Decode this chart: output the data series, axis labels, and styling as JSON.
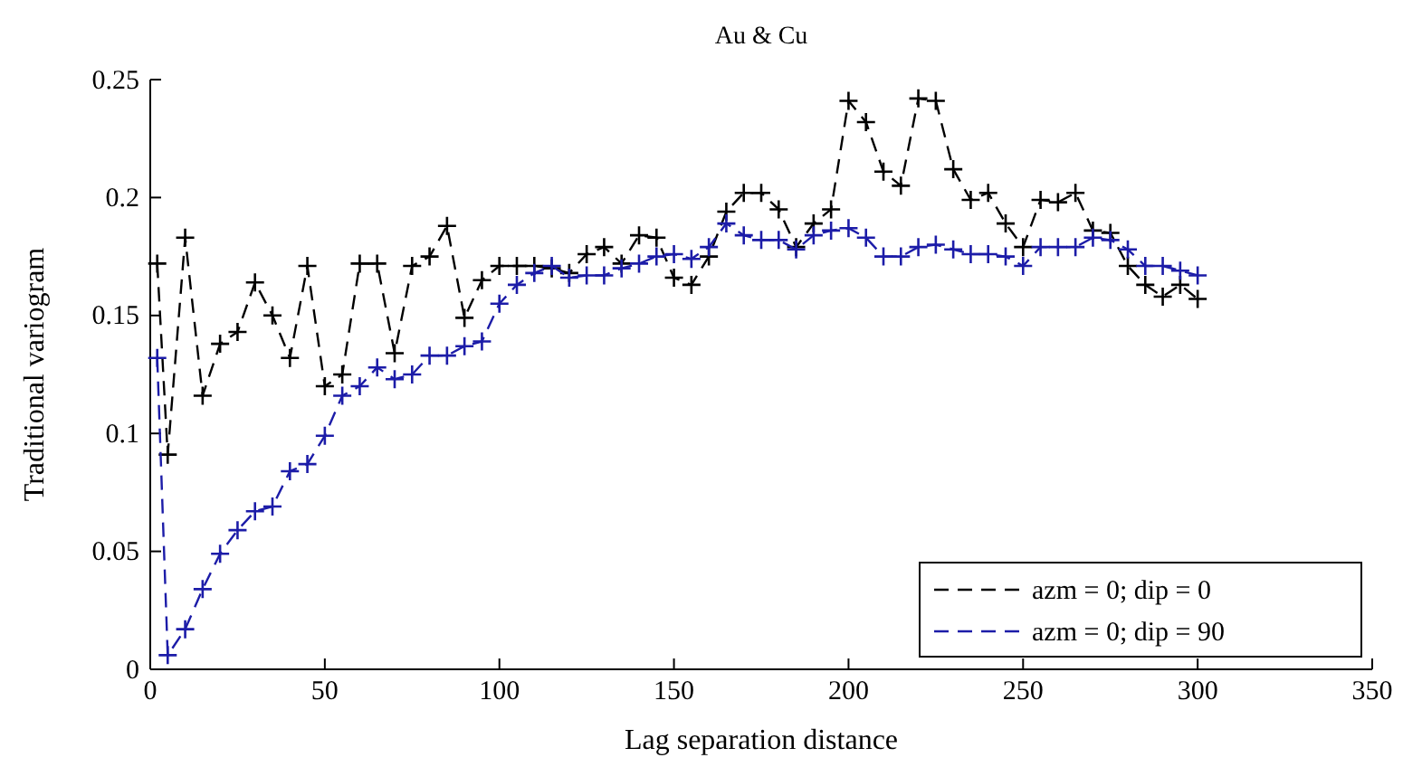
{
  "chart_data": {
    "type": "line",
    "title": "Au & Cu",
    "xlabel": "Lag separation distance",
    "ylabel": "Traditional variogram",
    "x": [
      2,
      5,
      10,
      15,
      20,
      25,
      30,
      35,
      40,
      45,
      50,
      55,
      60,
      65,
      70,
      75,
      80,
      85,
      90,
      95,
      100,
      105,
      110,
      115,
      120,
      125,
      130,
      135,
      140,
      145,
      150,
      155,
      160,
      165,
      170,
      175,
      180,
      185,
      190,
      195,
      200,
      205,
      210,
      215,
      220,
      225,
      230,
      235,
      240,
      245,
      250,
      255,
      260,
      265,
      270,
      275,
      280,
      285,
      290,
      295,
      300
    ],
    "series": [
      {
        "name": "azm = 0; dip = 0",
        "color": "#000000",
        "marker": "cross",
        "values": [
          0.172,
          0.091,
          0.183,
          0.116,
          0.138,
          0.143,
          0.164,
          0.15,
          0.132,
          0.171,
          0.12,
          0.125,
          0.172,
          0.172,
          0.134,
          0.171,
          0.175,
          0.188,
          0.149,
          0.165,
          0.171,
          0.171,
          0.171,
          0.17,
          0.168,
          0.176,
          0.179,
          0.172,
          0.184,
          0.183,
          0.166,
          0.163,
          0.175,
          0.194,
          0.202,
          0.202,
          0.195,
          0.179,
          0.189,
          0.195,
          0.241,
          0.232,
          0.211,
          0.205,
          0.242,
          0.241,
          0.212,
          0.199,
          0.202,
          0.189,
          0.179,
          0.199,
          0.198,
          0.202,
          0.186,
          0.185,
          0.171,
          0.163,
          0.158,
          0.163,
          0.157
        ]
      },
      {
        "name": "azm = 0; dip = 90",
        "color": "#1c1ca8",
        "marker": "cross",
        "values": [
          0.132,
          0.006,
          0.017,
          0.034,
          0.049,
          0.059,
          0.067,
          0.069,
          0.084,
          0.087,
          0.099,
          0.116,
          0.12,
          0.128,
          0.123,
          0.125,
          0.133,
          0.133,
          0.137,
          0.139,
          0.155,
          0.163,
          0.168,
          0.171,
          0.166,
          0.167,
          0.167,
          0.17,
          0.172,
          0.175,
          0.176,
          0.174,
          0.179,
          0.189,
          0.184,
          0.182,
          0.182,
          0.178,
          0.184,
          0.186,
          0.187,
          0.183,
          0.175,
          0.175,
          0.179,
          0.18,
          0.178,
          0.176,
          0.176,
          0.175,
          0.171,
          0.179,
          0.179,
          0.179,
          0.183,
          0.182,
          0.178,
          0.171,
          0.171,
          0.169,
          0.167
        ]
      }
    ],
    "xlim": [
      0,
      350
    ],
    "xticks": [
      0,
      50,
      100,
      150,
      200,
      250,
      300,
      350
    ],
    "ylim": [
      0,
      0.25
    ],
    "yticks": [
      0,
      0.05,
      0.1,
      0.15,
      0.2,
      0.25
    ],
    "line_style": "dashed",
    "legend": "bottom right",
    "grid": false
  }
}
